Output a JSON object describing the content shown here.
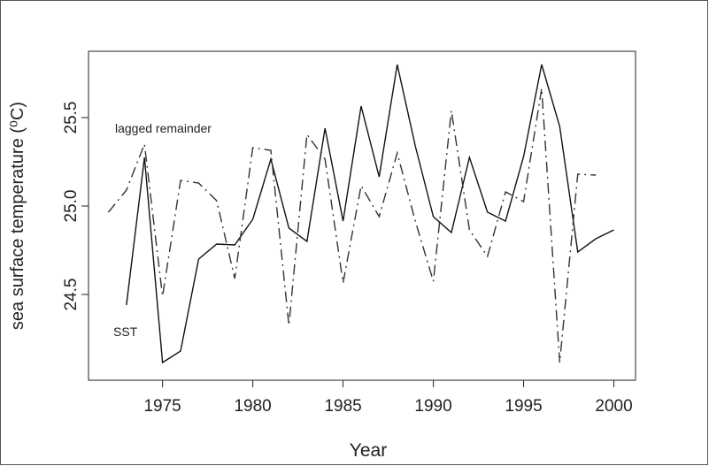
{
  "chart_data": {
    "type": "line",
    "x_label": "Year",
    "y_label": "sea surface temperature (⁰C)",
    "x": [
      1972,
      1973,
      1974,
      1975,
      1976,
      1977,
      1978,
      1979,
      1980,
      1981,
      1982,
      1983,
      1984,
      1985,
      1986,
      1987,
      1988,
      1989,
      1990,
      1991,
      1992,
      1993,
      1994,
      1995,
      1996,
      1997,
      1998,
      1999,
      2000
    ],
    "series": [
      {
        "name": "SST",
        "color": "#111111",
        "dash": "solid",
        "values": [
          null,
          24.44,
          25.275,
          24.115,
          24.18,
          24.7,
          24.785,
          24.78,
          24.925,
          25.265,
          24.875,
          24.8,
          25.44,
          24.915,
          25.565,
          25.165,
          25.8,
          25.34,
          24.94,
          24.85,
          25.275,
          24.965,
          24.915,
          25.28,
          25.8,
          25.45,
          24.74,
          24.815,
          24.865
        ]
      },
      {
        "name": "lagged remainder",
        "color": "#333333",
        "dash": "dashdot",
        "values": [
          24.965,
          25.09,
          25.35,
          24.49,
          25.145,
          25.13,
          25.03,
          24.59,
          25.33,
          25.315,
          24.325,
          25.405,
          25.265,
          24.565,
          25.115,
          24.94,
          25.3,
          24.915,
          24.575,
          25.54,
          24.865,
          24.715,
          25.08,
          25.025,
          25.665,
          24.115,
          25.18,
          25.175,
          null
        ]
      }
    ],
    "xlim": [
      1970.9,
      2001.2
    ],
    "xticks": [
      1975,
      1980,
      1985,
      1990,
      1995,
      2000
    ],
    "ylim": [
      24.015,
      25.875
    ],
    "yticks": [
      24.5,
      {
        "value": 25,
        "label": "25.0"
      },
      25.5
    ]
  }
}
